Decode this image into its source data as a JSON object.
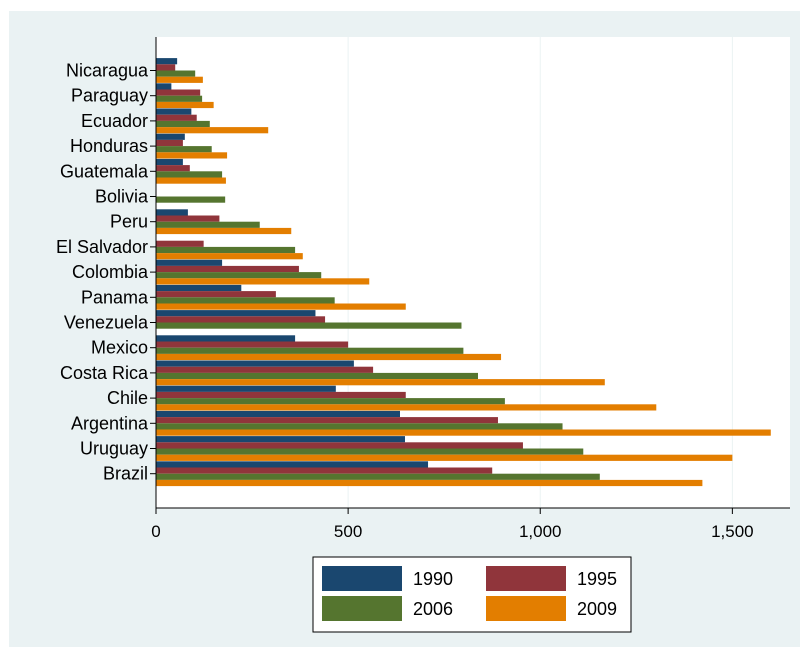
{
  "chart_data": {
    "type": "bar",
    "orientation": "horizontal",
    "categories": [
      "Nicaragua",
      "Paraguay",
      "Ecuador",
      "Honduras",
      "Guatemala",
      "Bolivia",
      "Peru",
      "El Salvador",
      "Colombia",
      "Panama",
      "Venezuela",
      "Mexico",
      "Costa Rica",
      "Chile",
      "Argentina",
      "Uruguay",
      "Brazil"
    ],
    "series": [
      {
        "name": "1990",
        "color": "#1a476f",
        "values": [
          55,
          40,
          92,
          75,
          70,
          null,
          83,
          null,
          172,
          222,
          415,
          362,
          515,
          468,
          635,
          648,
          708
        ]
      },
      {
        "name": "1995",
        "color": "#90353b",
        "values": [
          50,
          115,
          106,
          70,
          88,
          null,
          165,
          124,
          372,
          312,
          440,
          500,
          565,
          650,
          890,
          955,
          875
        ]
      },
      {
        "name": "2006",
        "color": "#55752f",
        "values": [
          102,
          120,
          140,
          145,
          172,
          180,
          270,
          362,
          430,
          465,
          795,
          800,
          838,
          908,
          1058,
          1112,
          1155
        ]
      },
      {
        "name": "2009",
        "color": "#e37e00",
        "values": [
          122,
          150,
          292,
          185,
          182,
          null,
          352,
          382,
          555,
          650,
          null,
          898,
          1168,
          1302,
          1600,
          1500,
          1422
        ]
      }
    ],
    "xlim": [
      0,
      1650
    ],
    "x_ticks": [
      0,
      500,
      1000,
      1500
    ],
    "x_tick_labels": [
      "0",
      "500",
      "1,000",
      "1,500"
    ],
    "title": "",
    "xlabel": "",
    "ylabel": "",
    "grid": true,
    "legend": {
      "position": "bottom-center",
      "columns": 2,
      "entries": [
        "1990",
        "1995",
        "2006",
        "2009"
      ]
    },
    "colors": {
      "outer_background": "#eaf2f3",
      "plot_background": "#ffffff",
      "grid": "#eaf2f3"
    }
  }
}
